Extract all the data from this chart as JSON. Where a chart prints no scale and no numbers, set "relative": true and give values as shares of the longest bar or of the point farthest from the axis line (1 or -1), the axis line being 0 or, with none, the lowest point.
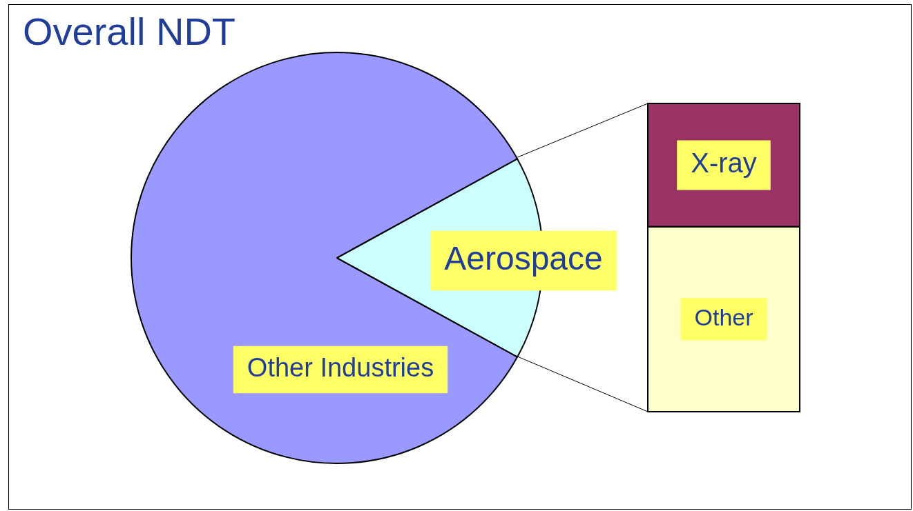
{
  "chart_data": [
    {
      "type": "pie",
      "title": "Overall NDT",
      "categories": [
        "Other Industries",
        "Aerospace"
      ],
      "values": [
        84,
        16
      ],
      "colors": [
        "#9999ff",
        "#ccffff"
      ],
      "legend": false
    },
    {
      "type": "bar",
      "stacked": true,
      "relative": true,
      "categories": [
        null
      ],
      "legend": false,
      "series": [
        {
          "name": "Other",
          "color": "#ffffcc",
          "values": [
            0.6
          ]
        },
        {
          "name": "X-ray",
          "color": "#993366",
          "values": [
            0.4
          ]
        }
      ]
    }
  ]
}
